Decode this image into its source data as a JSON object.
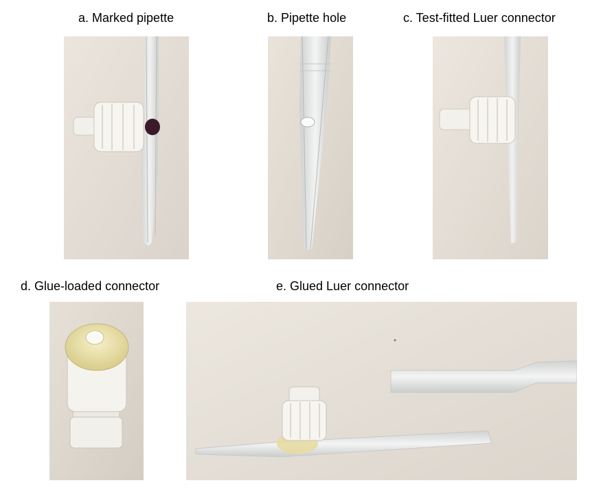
{
  "figure": {
    "panels": [
      {
        "caption": "a. Marked pipette"
      },
      {
        "caption": "b. Pipette hole"
      },
      {
        "caption": "c. Test-fitted Luer connector"
      },
      {
        "caption": "d. Glue-loaded connector"
      },
      {
        "caption": "e. Glued Luer connector"
      }
    ]
  }
}
